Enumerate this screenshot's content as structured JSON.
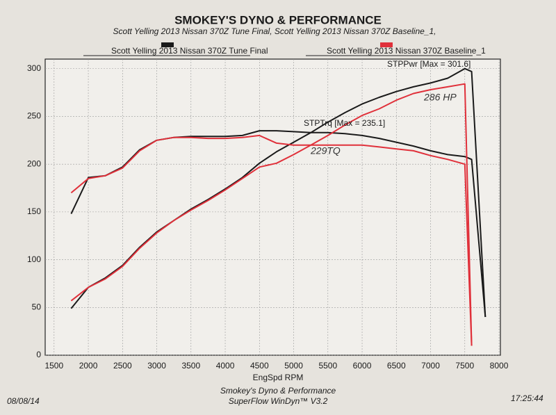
{
  "chart_data": {
    "type": "line",
    "title": "SMOKEY'S DYNO & PERFORMANCE",
    "subtitle": "Scott Yelling 2013 Nissan 370Z Tune Final, Scott Yelling 2013 Nissan 370Z Baseline_1,",
    "x_label": "EngSpd RPM",
    "x": [
      1750,
      2000,
      2250,
      2500,
      2750,
      3000,
      3250,
      3500,
      3750,
      4000,
      4250,
      4500,
      4750,
      5000,
      5250,
      5500,
      5750,
      6000,
      6250,
      6500,
      6750,
      7000,
      7250,
      7500,
      7600,
      7800
    ],
    "series": [
      {
        "name": "Scott Yelling 2013 Nissan 370Z Tune Final",
        "color": "#1a1a1a",
        "torque": [
          148,
          186,
          188,
          197,
          215,
          225,
          228,
          229,
          229,
          229,
          230,
          235,
          235,
          234,
          233,
          233,
          232,
          230,
          227,
          223,
          219,
          214,
          210,
          208,
          205,
          40
        ],
        "power": [
          49,
          71,
          81,
          94,
          113,
          129,
          141,
          153,
          163,
          174,
          186,
          201,
          213,
          223,
          233,
          244,
          254,
          263,
          270,
          276,
          281,
          285,
          290,
          300,
          297,
          40
        ]
      },
      {
        "name": "Scott Yelling 2013 Nissan 370Z Baseline_1",
        "color": "#e0303a",
        "torque": [
          170,
          185,
          188,
          196,
          214,
          225,
          228,
          228,
          227,
          227,
          228,
          230,
          222,
          220,
          220,
          220,
          220,
          220,
          218,
          216,
          214,
          209,
          205,
          200,
          10,
          null
        ],
        "power": [
          57,
          71,
          80,
          93,
          112,
          128,
          141,
          152,
          162,
          173,
          185,
          197,
          201,
          210,
          220,
          230,
          241,
          251,
          258,
          267,
          274,
          278,
          281,
          284,
          10,
          null
        ]
      }
    ],
    "xlim": [
      1370,
      8020
    ],
    "xticks": [
      1500,
      2000,
      2500,
      3000,
      3500,
      4000,
      4500,
      5000,
      5500,
      6000,
      6500,
      7000,
      7500,
      8000
    ],
    "ylim": [
      0,
      310
    ],
    "yticks": [
      0,
      50,
      100,
      150,
      200,
      250,
      300
    ],
    "grid": true,
    "annotations": [
      "STPPwr [Max = 301.6]",
      "STPTrq [Max = 235.1]",
      "286 HP",
      "229TQ"
    ],
    "footer": [
      "Smokey's Dyno & Performance",
      "SuperFlow WinDyn™ V3.2"
    ],
    "date": "08/08/14",
    "time": "17:25:44"
  }
}
